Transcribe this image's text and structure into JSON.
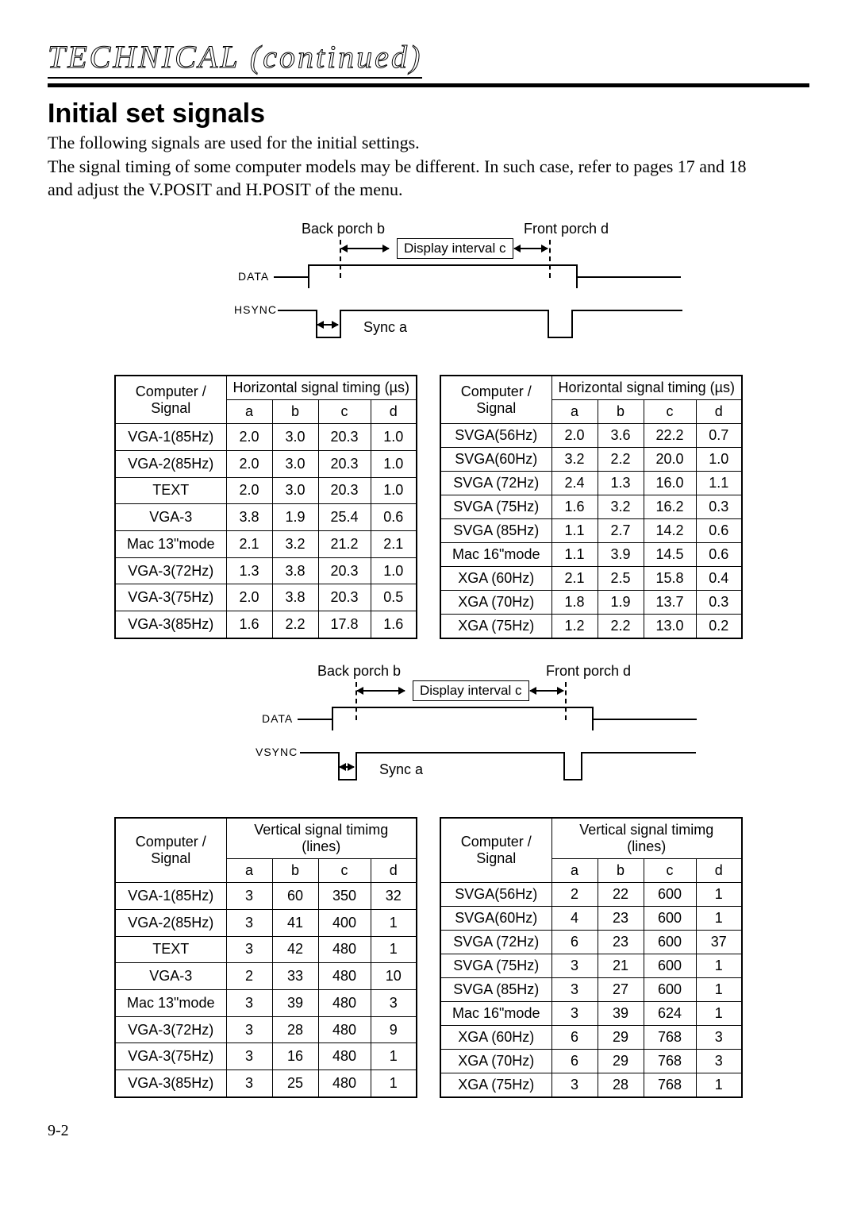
{
  "header": {
    "technical": "TECHNICAL (continued)",
    "title": "Initial set signals",
    "intro_line1": "The following signals are used for the initial settings.",
    "intro_line2": "The signal timing of some computer models may be different. In such case, refer to pages 17 and 18",
    "intro_line3": "and adjust the V.POSIT and H.POSIT of the menu."
  },
  "diagram": {
    "back_porch": "Back porch b",
    "front_porch": "Front porch d",
    "display_interval": "Display interval c",
    "sync": "Sync a",
    "data": "DATA",
    "hsync": "HSYNC",
    "vsync": "VSYNC"
  },
  "tables": {
    "h_timing_header": "Horizontal signal timing (µs)",
    "v_timing_header": "Vertical signal timimg (lines)",
    "comp_signal": "Computer / Signal",
    "cols": [
      "a",
      "b",
      "c",
      "d"
    ],
    "h_left": {
      "rows": [
        [
          "VGA-1(85Hz)",
          "2.0",
          "3.0",
          "20.3",
          "1.0"
        ],
        [
          "VGA-2(85Hz)",
          "2.0",
          "3.0",
          "20.3",
          "1.0"
        ],
        [
          "TEXT",
          "2.0",
          "3.0",
          "20.3",
          "1.0"
        ],
        [
          "VGA-3",
          "3.8",
          "1.9",
          "25.4",
          "0.6"
        ],
        [
          "Mac 13\"mode",
          "2.1",
          "3.2",
          "21.2",
          "2.1"
        ],
        [
          "VGA-3(72Hz)",
          "1.3",
          "3.8",
          "20.3",
          "1.0"
        ],
        [
          "VGA-3(75Hz)",
          "2.0",
          "3.8",
          "20.3",
          "0.5"
        ],
        [
          "VGA-3(85Hz)",
          "1.6",
          "2.2",
          "17.8",
          "1.6"
        ]
      ]
    },
    "h_right": {
      "rows": [
        [
          "SVGA(56Hz)",
          "2.0",
          "3.6",
          "22.2",
          "0.7"
        ],
        [
          "SVGA(60Hz)",
          "3.2",
          "2.2",
          "20.0",
          "1.0"
        ],
        [
          "SVGA (72Hz)",
          "2.4",
          "1.3",
          "16.0",
          "1.1"
        ],
        [
          "SVGA (75Hz)",
          "1.6",
          "3.2",
          "16.2",
          "0.3"
        ],
        [
          "SVGA (85Hz)",
          "1.1",
          "2.7",
          "14.2",
          "0.6"
        ],
        [
          "Mac 16\"mode",
          "1.1",
          "3.9",
          "14.5",
          "0.6"
        ],
        [
          "XGA (60Hz)",
          "2.1",
          "2.5",
          "15.8",
          "0.4"
        ],
        [
          "XGA (70Hz)",
          "1.8",
          "1.9",
          "13.7",
          "0.3"
        ],
        [
          "XGA (75Hz)",
          "1.2",
          "2.2",
          "13.0",
          "0.2"
        ]
      ]
    },
    "v_left": {
      "rows": [
        [
          "VGA-1(85Hz)",
          "3",
          "60",
          "350",
          "32"
        ],
        [
          "VGA-2(85Hz)",
          "3",
          "41",
          "400",
          "1"
        ],
        [
          "TEXT",
          "3",
          "42",
          "480",
          "1"
        ],
        [
          "VGA-3",
          "2",
          "33",
          "480",
          "10"
        ],
        [
          "Mac 13\"mode",
          "3",
          "39",
          "480",
          "3"
        ],
        [
          "VGA-3(72Hz)",
          "3",
          "28",
          "480",
          "9"
        ],
        [
          "VGA-3(75Hz)",
          "3",
          "16",
          "480",
          "1"
        ],
        [
          "VGA-3(85Hz)",
          "3",
          "25",
          "480",
          "1"
        ]
      ]
    },
    "v_right": {
      "rows": [
        [
          "SVGA(56Hz)",
          "2",
          "22",
          "600",
          "1"
        ],
        [
          "SVGA(60Hz)",
          "4",
          "23",
          "600",
          "1"
        ],
        [
          "SVGA (72Hz)",
          "6",
          "23",
          "600",
          "37"
        ],
        [
          "SVGA (75Hz)",
          "3",
          "21",
          "600",
          "1"
        ],
        [
          "SVGA (85Hz)",
          "3",
          "27",
          "600",
          "1"
        ],
        [
          "Mac 16\"mode",
          "3",
          "39",
          "624",
          "1"
        ],
        [
          "XGA (60Hz)",
          "6",
          "29",
          "768",
          "3"
        ],
        [
          "XGA (70Hz)",
          "6",
          "29",
          "768",
          "3"
        ],
        [
          "XGA (75Hz)",
          "3",
          "28",
          "768",
          "1"
        ]
      ]
    }
  },
  "footer": {
    "pagenum": "9-2"
  },
  "style": {
    "page_bg": "#ffffff",
    "text_color": "#000000",
    "border_color": "#000000",
    "body_font_size_pt": 16,
    "title_font_size_pt": 26,
    "table_font_size_pt": 14
  }
}
